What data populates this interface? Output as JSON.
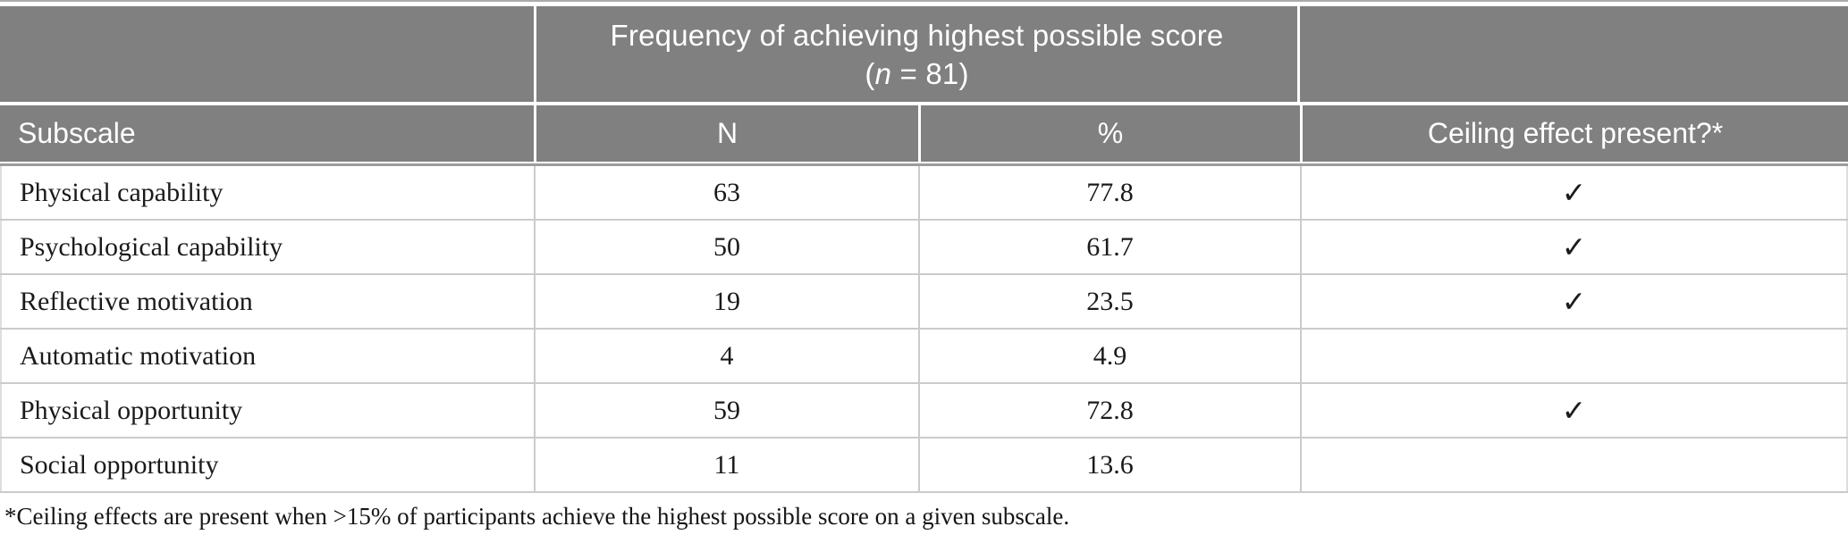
{
  "table": {
    "span_header": {
      "title": "Frequency of achieving highest possible score",
      "sub_open": "(",
      "sub_italic": "n",
      "sub_rest": " = 81)"
    },
    "columns": [
      "Subscale",
      "N",
      "%",
      "Ceiling effect present?*"
    ],
    "rows": [
      {
        "subscale": "Physical capability",
        "n": "63",
        "pct": "77.8",
        "ceiling": "✓"
      },
      {
        "subscale": "Psychological capability",
        "n": "50",
        "pct": "61.7",
        "ceiling": "✓"
      },
      {
        "subscale": "Reflective motivation",
        "n": "19",
        "pct": "23.5",
        "ceiling": "✓"
      },
      {
        "subscale": "Automatic motivation",
        "n": "4",
        "pct": "4.9",
        "ceiling": ""
      },
      {
        "subscale": "Physical opportunity",
        "n": "59",
        "pct": "72.8",
        "ceiling": "✓"
      },
      {
        "subscale": "Social opportunity",
        "n": "11",
        "pct": "13.6",
        "ceiling": ""
      }
    ],
    "footnote": "*Ceiling effects are present when >15% of participants achieve the highest possible score on a given subscale."
  },
  "colors": {
    "header_bg": "#808080",
    "header_text": "#ffffff",
    "row_border": "#cbcbcb",
    "body_text": "#1a1a1a"
  },
  "chart_data": {
    "type": "table",
    "title": "Frequency of achieving highest possible score (n = 81)",
    "columns": [
      "Subscale",
      "N",
      "%",
      "Ceiling effect present?*"
    ],
    "rows": [
      [
        "Physical capability",
        63,
        77.8,
        true
      ],
      [
        "Psychological capability",
        50,
        61.7,
        true
      ],
      [
        "Reflective motivation",
        19,
        23.5,
        true
      ],
      [
        "Automatic motivation",
        4,
        4.9,
        false
      ],
      [
        "Physical opportunity",
        59,
        72.8,
        true
      ],
      [
        "Social opportunity",
        11,
        13.6,
        false
      ]
    ]
  }
}
